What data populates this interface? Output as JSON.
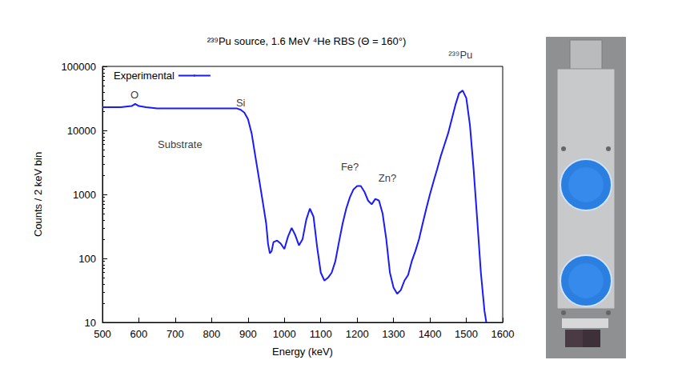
{
  "chart_data": {
    "type": "line",
    "title": "²³⁹Pu source, 1.6 MeV ⁴He RBS (Θ = 160°)",
    "xlabel": "Energy (keV)",
    "ylabel": "Counts / 2 keV bin",
    "log": "y",
    "grid": false,
    "legend": "upper left",
    "xlim": [
      500,
      1600
    ],
    "xticks": [
      500,
      600,
      700,
      800,
      900,
      1000,
      1100,
      1200,
      1300,
      1400,
      1500,
      1600
    ],
    "ylim": [
      10,
      100000
    ],
    "yticks": [
      10,
      100,
      1000,
      10000,
      100000
    ],
    "x": [
      500,
      550,
      580,
      590,
      600,
      620,
      650,
      700,
      750,
      800,
      850,
      870,
      880,
      890,
      900,
      910,
      920,
      930,
      940,
      950,
      955,
      960,
      965,
      970,
      980,
      990,
      1000,
      1010,
      1020,
      1030,
      1040,
      1050,
      1060,
      1070,
      1080,
      1090,
      1100,
      1110,
      1120,
      1130,
      1140,
      1150,
      1160,
      1170,
      1180,
      1190,
      1200,
      1210,
      1220,
      1230,
      1240,
      1250,
      1260,
      1270,
      1280,
      1290,
      1300,
      1310,
      1320,
      1330,
      1340,
      1350,
      1360,
      1370,
      1380,
      1390,
      1400,
      1410,
      1420,
      1430,
      1440,
      1450,
      1460,
      1470,
      1480,
      1490,
      1500,
      1510,
      1520,
      1530,
      1540,
      1550,
      1555
    ],
    "series": [
      {
        "name": "Experimental",
        "color": "#1a1aff",
        "values": [
          23000,
          23000,
          24000,
          26000,
          24000,
          23000,
          22000,
          22000,
          22000,
          22000,
          22000,
          22000,
          21000,
          19000,
          15000,
          9000,
          4000,
          1800,
          800,
          350,
          170,
          120,
          130,
          180,
          190,
          170,
          140,
          220,
          300,
          230,
          160,
          200,
          400,
          600,
          450,
          150,
          60,
          45,
          50,
          60,
          90,
          180,
          350,
          600,
          900,
          1200,
          1350,
          1350,
          1100,
          800,
          700,
          850,
          800,
          500,
          200,
          60,
          35,
          28,
          32,
          45,
          55,
          90,
          130,
          200,
          350,
          600,
          1000,
          1600,
          2500,
          4000,
          6000,
          9000,
          15000,
          25000,
          38000,
          42000,
          32000,
          12000,
          2500,
          400,
          60,
          15,
          10
        ]
      }
    ],
    "annotations": [
      {
        "text": "O",
        "x": 588,
        "y": 36000
      },
      {
        "text": "Si",
        "x": 880,
        "y": 27000
      },
      {
        "text": "Substrate",
        "x": 713,
        "y": 6000
      },
      {
        "text": "Fe?",
        "x": 1180,
        "y": 2700
      },
      {
        "text": "Zn?",
        "x": 1283,
        "y": 1800
      },
      {
        "text": "²³⁹Pu",
        "x": 1484,
        "y": 150000
      }
    ]
  }
}
